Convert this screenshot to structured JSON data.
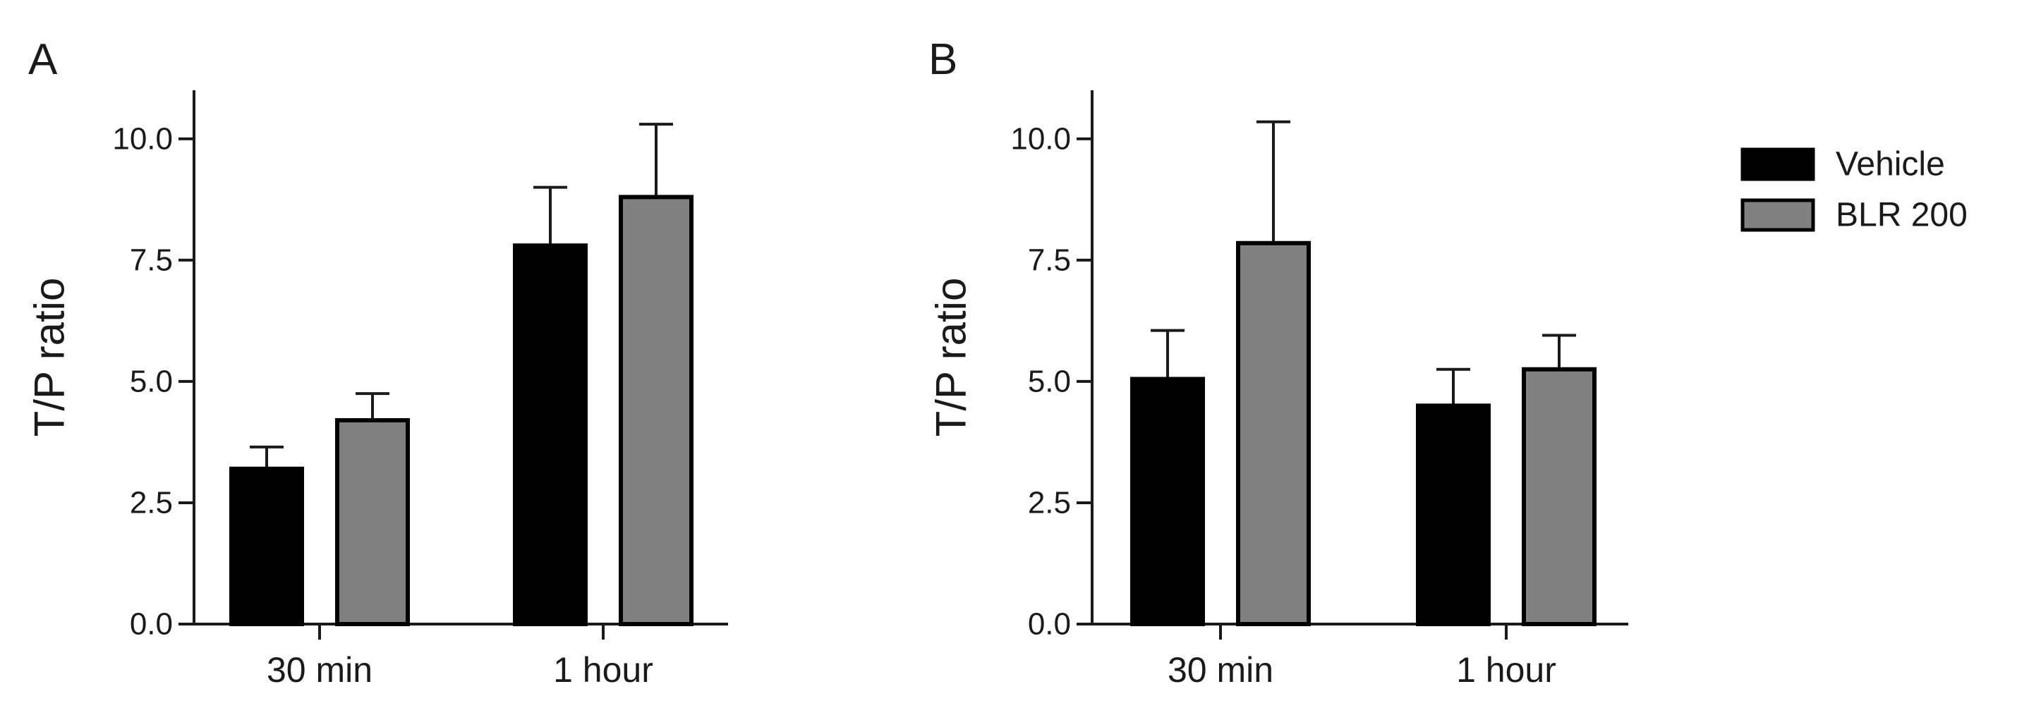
{
  "colors": {
    "vehicle": "#000000",
    "blr200": "#808080",
    "axis": "#1a1a1a"
  },
  "legend": {
    "items": [
      {
        "name": "Vehicle",
        "color": "#000000"
      },
      {
        "name": "BLR 200",
        "color": "#808080"
      }
    ],
    "position": "top-right"
  },
  "chart_data": [
    {
      "panel": "A",
      "type": "bar",
      "ylabel": "T/P ratio",
      "xlabel": "",
      "ylim": [
        0,
        11
      ],
      "yticks": [
        "0.0",
        "2.5",
        "5.0",
        "7.5",
        "10.0"
      ],
      "categories": [
        "30 min",
        "1 hour"
      ],
      "series": [
        {
          "name": "Vehicle",
          "values": [
            3.2,
            7.8
          ],
          "errors": [
            0.45,
            1.2
          ]
        },
        {
          "name": "BLR 200",
          "values": [
            4.2,
            8.8
          ],
          "errors": [
            0.55,
            1.5
          ]
        }
      ]
    },
    {
      "panel": "B",
      "type": "bar",
      "ylabel": "T/P ratio",
      "xlabel": "",
      "ylim": [
        0,
        11
      ],
      "yticks": [
        "0.0",
        "2.5",
        "5.0",
        "7.5",
        "10.0"
      ],
      "categories": [
        "30 min",
        "1 hour"
      ],
      "series": [
        {
          "name": "Vehicle",
          "values": [
            5.05,
            4.5
          ],
          "errors": [
            1.0,
            0.75
          ]
        },
        {
          "name": "BLR 200",
          "values": [
            7.85,
            5.25
          ],
          "errors": [
            2.5,
            0.7
          ]
        }
      ]
    }
  ]
}
